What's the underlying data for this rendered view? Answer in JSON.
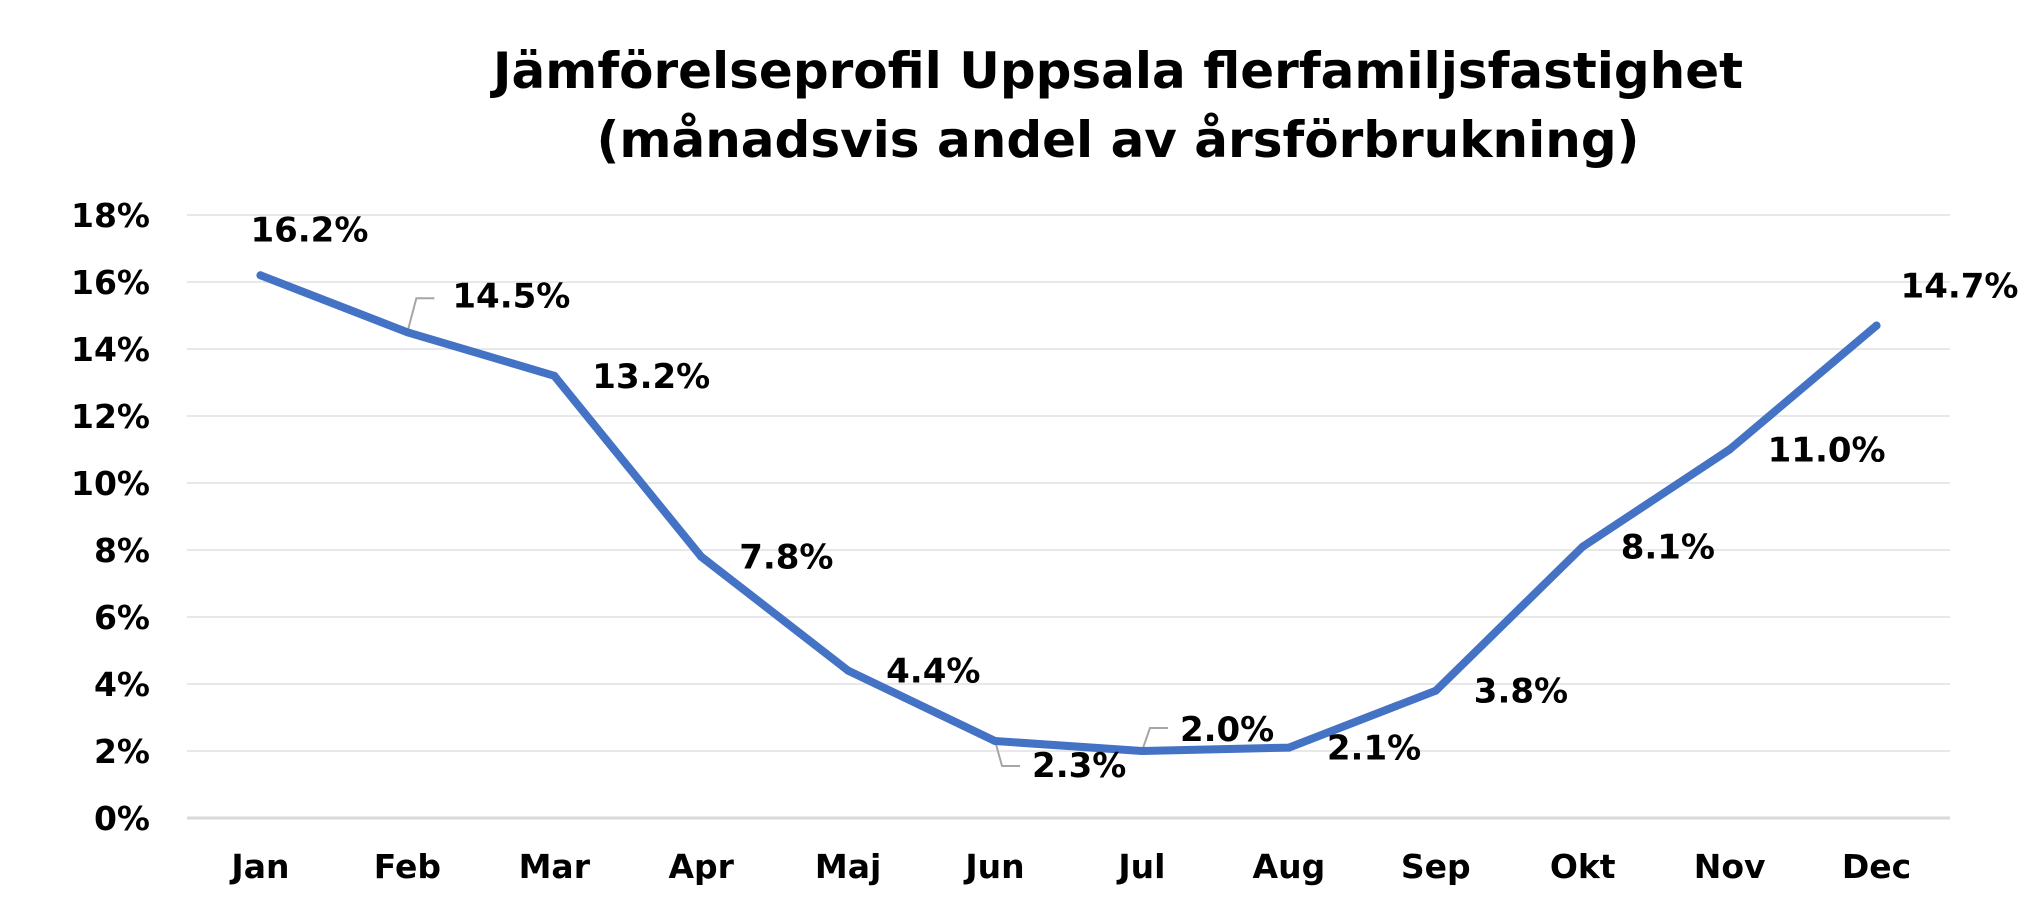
{
  "colors": {
    "line": "#4472C4",
    "grid": "#E8E8E8",
    "axis": "#D9D9D9",
    "leader": "#A6A6A6",
    "text": "#000000"
  },
  "chart_data": {
    "type": "line",
    "title": [
      "Jämförelseprofil Uppsala flerfamiljsfastighet",
      "(månadsvis andel av årsförbrukning)"
    ],
    "xlabel": "",
    "ylabel": "",
    "categories": [
      "Jan",
      "Feb",
      "Mar",
      "Apr",
      "Maj",
      "Jun",
      "Jul",
      "Aug",
      "Sep",
      "Okt",
      "Nov",
      "Dec"
    ],
    "series": [
      {
        "values": [
          16.2,
          14.5,
          13.2,
          7.8,
          4.4,
          2.3,
          2.0,
          2.1,
          3.8,
          8.1,
          11.0,
          14.7
        ],
        "labels": [
          "16.2%",
          "14.5%",
          "13.2%",
          "7.8%",
          "4.4%",
          "2.3%",
          "2.0%",
          "2.1%",
          "3.8%",
          "8.1%",
          "11.0%",
          "14.7%"
        ]
      }
    ],
    "ylim": [
      0,
      18
    ],
    "yticks": [
      0,
      2,
      4,
      6,
      8,
      10,
      12,
      14,
      16,
      18
    ],
    "ytick_labels": [
      "0%",
      "2%",
      "4%",
      "6%",
      "8%",
      "10%",
      "12%",
      "14%",
      "16%",
      "18%"
    ],
    "grid": true,
    "legend": "none"
  }
}
